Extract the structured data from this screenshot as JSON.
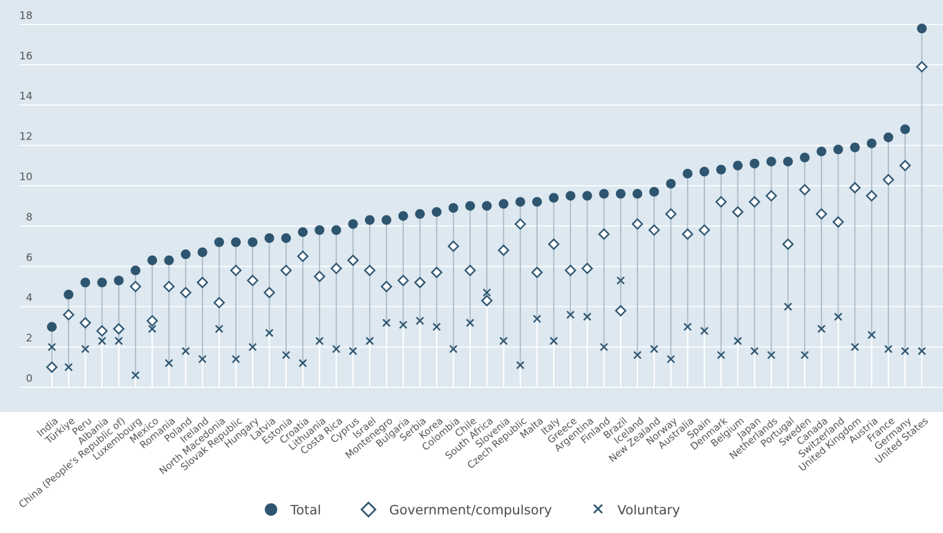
{
  "chart_data": {
    "type": "scatter",
    "yticks": [
      0,
      2,
      4,
      6,
      8,
      10,
      12,
      14,
      16,
      18
    ],
    "ylim": [
      -0.6,
      18.6
    ],
    "grid": true,
    "legend_position": "bottom",
    "colors": {
      "background": "#dde8f0",
      "marker": "#2e5570",
      "stem": "#a8b8c4",
      "stem_white": "#ffffff",
      "grid": "#ffffff"
    },
    "categories": [
      "India",
      "Türkiye",
      "Peru",
      "Albania",
      "China (People's Republic of)",
      "Luxembourg",
      "Mexico",
      "Romania",
      "Poland",
      "Ireland",
      "North Macedonia",
      "Slovak Republic",
      "Hungary",
      "Latvia",
      "Estonia",
      "Croatia",
      "Lithuania",
      "Costa Rica",
      "Cyprus",
      "Israel",
      "Montenegro",
      "Bulgaria",
      "Serbia",
      "Korea",
      "Colombia",
      "Chile",
      "South Africa",
      "Slovenia",
      "Czech Republic",
      "Malta",
      "Italy",
      "Greece",
      "Argentina",
      "Finland",
      "Brazil",
      "Iceland",
      "New Zealand",
      "Norway",
      "Australia",
      "Spain",
      "Denmark",
      "Belgium",
      "Japan",
      "Netherlands",
      "Portugal",
      "Sweden",
      "Canada",
      "Switzerland",
      "United Kingdom",
      "Austria",
      "France",
      "Germany",
      "United States"
    ],
    "series": [
      {
        "name": "Total",
        "marker": "circle",
        "values": [
          3.0,
          4.6,
          5.2,
          5.2,
          5.3,
          5.8,
          6.3,
          6.3,
          6.6,
          6.7,
          7.2,
          7.2,
          7.2,
          7.4,
          7.4,
          7.7,
          7.8,
          7.8,
          8.1,
          8.3,
          8.3,
          8.5,
          8.6,
          8.7,
          8.9,
          9.0,
          9.0,
          9.1,
          9.2,
          9.2,
          9.4,
          9.5,
          9.5,
          9.6,
          9.6,
          9.6,
          9.7,
          10.1,
          10.6,
          10.7,
          10.8,
          11.0,
          11.1,
          11.2,
          11.2,
          11.4,
          11.7,
          11.8,
          11.9,
          12.1,
          12.4,
          12.8,
          17.8
        ]
      },
      {
        "name": "Government/compulsory",
        "marker": "diamond",
        "values": [
          1.0,
          3.6,
          3.2,
          2.8,
          2.9,
          5.0,
          3.3,
          5.0,
          4.7,
          5.2,
          4.2,
          5.8,
          5.3,
          4.7,
          5.8,
          6.5,
          5.5,
          5.9,
          6.3,
          5.8,
          5.0,
          5.3,
          5.2,
          5.7,
          7.0,
          5.8,
          4.3,
          6.8,
          8.1,
          5.7,
          7.1,
          5.8,
          5.9,
          7.6,
          3.8,
          8.1,
          7.8,
          8.6,
          7.6,
          7.8,
          9.2,
          8.7,
          9.2,
          9.5,
          7.1,
          9.8,
          8.6,
          8.2,
          9.9,
          9.5,
          10.3,
          11.0,
          15.9
        ]
      },
      {
        "name": "Voluntary",
        "marker": "x",
        "values": [
          2.0,
          1.0,
          1.9,
          2.3,
          2.3,
          0.6,
          2.9,
          1.2,
          1.8,
          1.4,
          2.9,
          1.4,
          2.0,
          2.7,
          1.6,
          1.2,
          2.3,
          1.9,
          1.8,
          2.3,
          3.2,
          3.1,
          3.3,
          3.0,
          1.9,
          3.2,
          4.7,
          2.3,
          1.1,
          3.4,
          2.3,
          3.6,
          3.5,
          2.0,
          5.3,
          1.6,
          1.9,
          1.4,
          3.0,
          2.8,
          1.6,
          2.3,
          1.8,
          1.6,
          4.0,
          1.6,
          2.9,
          3.5,
          2.0,
          2.6,
          1.9,
          1.8,
          1.8
        ]
      }
    ]
  },
  "legend": {
    "items": [
      {
        "label": "Total",
        "icon": "circle-marker-icon"
      },
      {
        "label": "Government/compulsory",
        "icon": "diamond-marker-icon"
      },
      {
        "label": "Voluntary",
        "icon": "x-marker-icon"
      }
    ]
  }
}
